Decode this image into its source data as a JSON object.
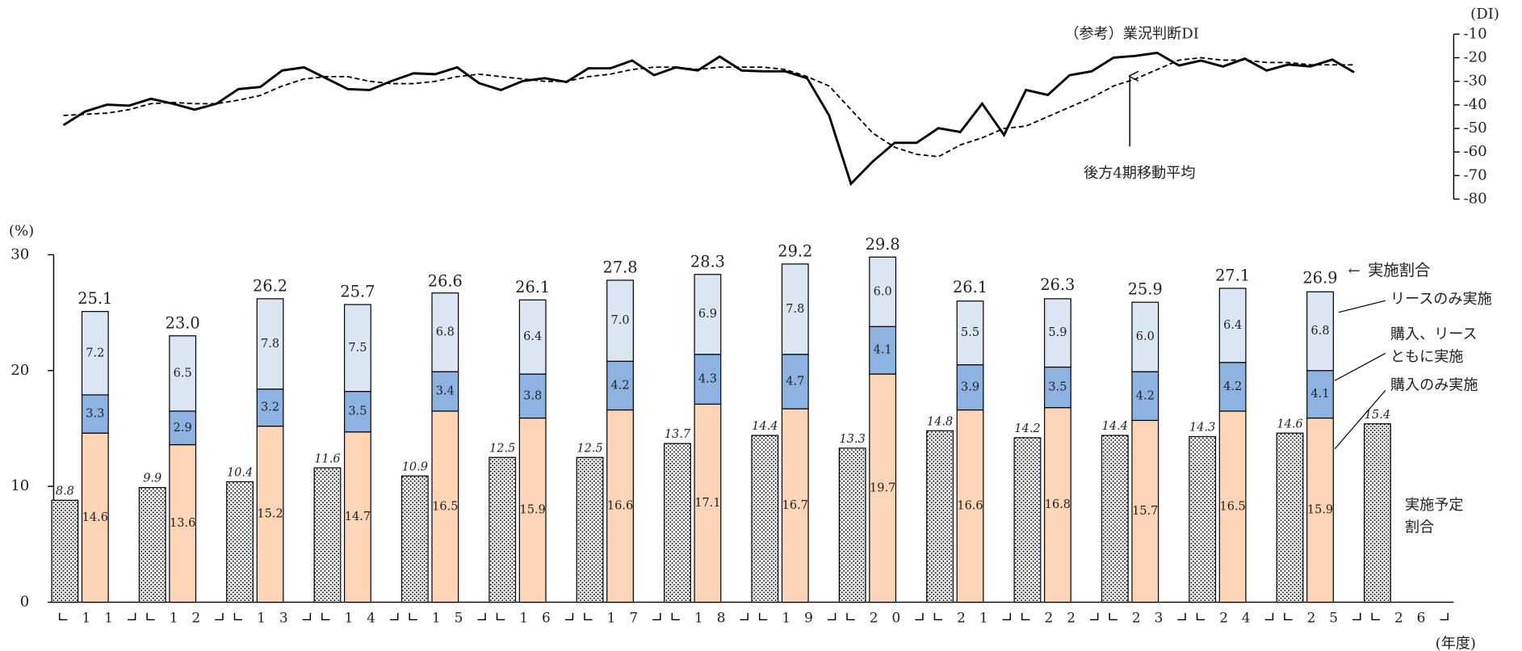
{
  "chart_data": [
    {
      "type": "line",
      "y_unit": "(DI)",
      "annotations": [
        "（参考）業況判断DI",
        "後方4期移動平均"
      ],
      "ylim": [
        -80,
        -10
      ],
      "yticks": [
        -80,
        -70,
        -60,
        -50,
        -40,
        -30,
        -20,
        -10
      ],
      "series": [
        {
          "color": "#000000",
          "dash": false,
          "values": [
            -48.6,
            -42.8,
            -39.9,
            -40.3,
            -37.4,
            -39.5,
            -42,
            -39.5,
            -33.3,
            -32.4,
            -25.4,
            -24.1,
            -28.7,
            -33.3,
            -33.7,
            -29.9,
            -26.6,
            -27,
            -24.1,
            -30.8,
            -33.7,
            -29.9,
            -28.7,
            -30.3,
            -24.5,
            -24.5,
            -21.2,
            -27.4,
            -24.1,
            -25.4,
            -19.5,
            -25.4,
            -25.8,
            -25.8,
            -28.7,
            -44.5,
            -73.5,
            -64,
            -56.1,
            -56.1,
            -49.9,
            -51.5,
            -39.5,
            -52.8,
            -33.7,
            -35.8,
            -27.4,
            -25.8,
            -20,
            -19.2,
            -17.9,
            -23.3,
            -21.2,
            -23.7,
            -20.4,
            -25.4,
            -22.9,
            -23.7,
            -20.8,
            -26.2
          ]
        },
        {
          "color": "#000000",
          "dash": true,
          "values": [
            -44.5,
            -44,
            -43.5,
            -42,
            -39.5,
            -39,
            -39.5,
            -39.5,
            -38,
            -36,
            -32,
            -29,
            -28,
            -28,
            -30,
            -31,
            -31,
            -30,
            -28,
            -27,
            -28,
            -29,
            -30,
            -30,
            -28,
            -27,
            -25,
            -24,
            -24,
            -25,
            -24,
            -24,
            -24,
            -25,
            -28,
            -32,
            -42,
            -52,
            -58,
            -61,
            -62,
            -57,
            -54,
            -50,
            -49,
            -45,
            -41,
            -37,
            -32,
            -29,
            -25,
            -21,
            -20,
            -21,
            -21,
            -22,
            -22,
            -23,
            -23,
            -23
          ]
        }
      ]
    },
    {
      "type": "bar",
      "stacked": true,
      "y_unit": "(%)",
      "x_unit": "(年度)",
      "ylim": [
        0,
        30
      ],
      "yticks": [
        0,
        10,
        20,
        30
      ],
      "categories": [
        "11",
        "12",
        "13",
        "14",
        "15",
        "16",
        "17",
        "18",
        "19",
        "20",
        "21",
        "22",
        "23",
        "24",
        "25",
        "26"
      ],
      "series": [
        {
          "name": "実施予定\n割合",
          "color": "#ffffff",
          "pattern": "dots",
          "stack": "plan",
          "values": [
            8.8,
            9.9,
            10.4,
            11.6,
            10.9,
            12.5,
            12.5,
            13.7,
            14.4,
            13.3,
            14.8,
            14.2,
            14.4,
            14.3,
            14.6,
            15.4
          ],
          "value_labels": [
            "8.8",
            "9.9",
            "10.4",
            "11.6",
            "10.9",
            "12.5",
            "12.5",
            "13.7",
            "14.4",
            "13.3",
            "14.8",
            "14.2",
            "14.4",
            "14.3",
            "14.6",
            "15.4"
          ]
        },
        {
          "name": "購入のみ実施",
          "color": "#fbd5b5",
          "stack": "done",
          "values": [
            14.6,
            13.6,
            15.2,
            14.7,
            16.5,
            15.9,
            16.6,
            17.1,
            16.7,
            19.7,
            16.6,
            16.8,
            15.7,
            16.5,
            15.9,
            null
          ],
          "value_labels": [
            "14.6",
            "13.6",
            "15.2",
            "14.7",
            "16.5",
            "15.9",
            "16.6",
            "17.1",
            "16.7",
            "19.7",
            "16.6",
            "16.8",
            "15.7",
            "16.5",
            "15.9",
            null
          ]
        },
        {
          "name": "購入、リース\nともに実施",
          "color": "#8db3e2",
          "stack": "done",
          "values": [
            3.3,
            2.9,
            3.2,
            3.5,
            3.4,
            3.8,
            4.2,
            4.3,
            4.7,
            4.1,
            3.9,
            3.5,
            4.2,
            4.2,
            4.1,
            null
          ],
          "value_labels": [
            "3.3",
            "2.9",
            "3.2",
            "3.5",
            "3.4",
            "3.8",
            "4.2",
            "4.3",
            "4.7",
            "4.1",
            "3.9",
            "3.5",
            "4.2",
            "4.2",
            "4.1",
            null
          ]
        },
        {
          "name": "リースのみ実施",
          "color": "#dce6f2",
          "stack": "done",
          "values": [
            7.2,
            6.5,
            7.8,
            7.5,
            6.8,
            6.4,
            7.0,
            6.9,
            7.8,
            6.0,
            5.5,
            5.9,
            6.0,
            6.4,
            6.8,
            null
          ],
          "value_labels": [
            "7.2",
            "6.5",
            "7.8",
            "7.5",
            "6.8",
            "6.4",
            "7.0",
            "6.9",
            "7.8",
            "6.0",
            "5.5",
            "5.9",
            "6.0",
            "6.4",
            "6.8",
            null
          ]
        }
      ],
      "totals": {
        "name": "実施割合",
        "values": [
          25.1,
          23.0,
          26.2,
          25.7,
          26.6,
          26.1,
          27.8,
          28.3,
          29.2,
          29.8,
          26.1,
          26.3,
          25.9,
          27.1,
          26.9,
          null
        ],
        "value_labels": [
          "25.1",
          "23.0",
          "26.2",
          "25.7",
          "26.6",
          "26.1",
          "27.8",
          "28.3",
          "29.2",
          "29.8",
          "26.1",
          "26.3",
          "25.9",
          "27.1",
          "26.9",
          null
        ]
      }
    }
  ]
}
